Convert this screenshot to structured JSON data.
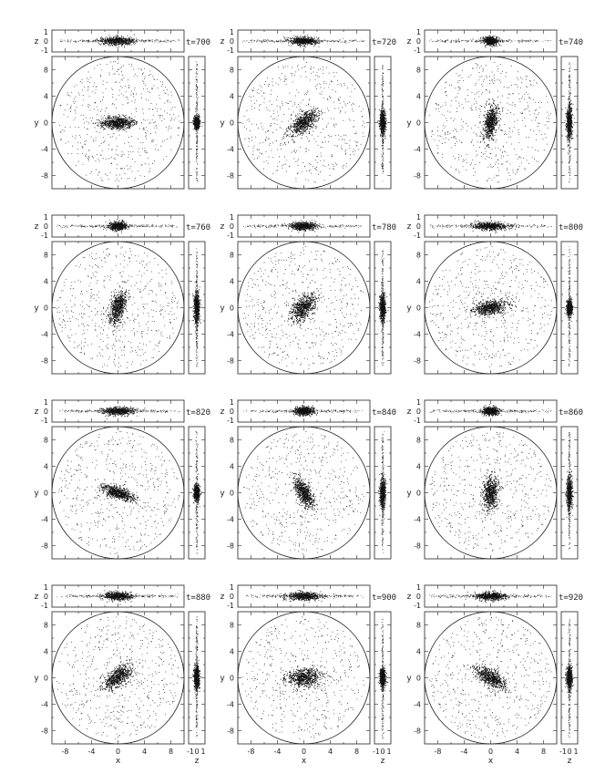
{
  "chart_data": {
    "type": "scatter",
    "layout": "4x3 grid of snapshot panels",
    "axes": {
      "xy_xlabel": "x",
      "xy_ylabel": "y",
      "xy_xlim": [
        -10,
        10
      ],
      "xy_ylim": [
        -10,
        10
      ],
      "xy_xticks": [
        "-8",
        "-4",
        "0",
        "4",
        "8"
      ],
      "xy_yticks": [
        "8",
        "4",
        "0",
        "-4",
        "-8"
      ],
      "xz_ylabel": "z",
      "xz_zlim": [
        -1,
        1
      ],
      "xz_zticks": [
        "1",
        "0",
        "-1"
      ],
      "zy_xlabel": "z",
      "zy_zticks": [
        "-1",
        "0",
        "1"
      ],
      "circle_radius": 10
    },
    "time_prefix": "t=",
    "panels": [
      {
        "time": "700",
        "bar_angle_deg": 0,
        "bar_axis_ratio": 0.35
      },
      {
        "time": "720",
        "bar_angle_deg": 40,
        "bar_axis_ratio": 0.45
      },
      {
        "time": "740",
        "bar_angle_deg": 80,
        "bar_axis_ratio": 0.4
      },
      {
        "time": "760",
        "bar_angle_deg": 75,
        "bar_axis_ratio": 0.45
      },
      {
        "time": "780",
        "bar_angle_deg": 50,
        "bar_axis_ratio": 0.55
      },
      {
        "time": "800",
        "bar_angle_deg": 10,
        "bar_axis_ratio": 0.4
      },
      {
        "time": "820",
        "bar_angle_deg": 160,
        "bar_axis_ratio": 0.35
      },
      {
        "time": "840",
        "bar_angle_deg": 120,
        "bar_axis_ratio": 0.4
      },
      {
        "time": "860",
        "bar_angle_deg": 85,
        "bar_axis_ratio": 0.45
      },
      {
        "time": "880",
        "bar_angle_deg": 40,
        "bar_axis_ratio": 0.5
      },
      {
        "time": "900",
        "bar_angle_deg": 5,
        "bar_axis_ratio": 0.55
      },
      {
        "time": "920",
        "bar_angle_deg": 150,
        "bar_axis_ratio": 0.45
      }
    ]
  }
}
